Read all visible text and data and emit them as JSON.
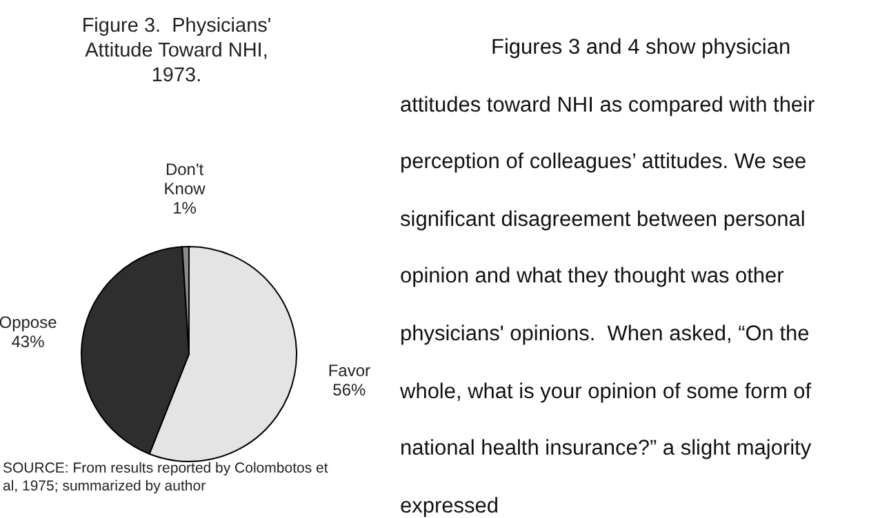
{
  "chart_data": {
    "type": "pie",
    "title": "Figure 3.  Physicians' Attitude Toward NHI, 1973.",
    "categories": [
      "Favor",
      "Oppose",
      "Don't Know"
    ],
    "values": [
      56,
      43,
      1
    ],
    "value_labels": [
      "56%",
      "43%",
      "1%"
    ],
    "colors": [
      "#e4e4e4",
      "#2e2e2e",
      "#8a8a8a"
    ],
    "annotations": [
      "SOURCE: From results reported by Colombotos et al, 1975; summarized by author",
      "Figures 3 and 4 show physician attitudes toward NHI as compared with their perception of colleagues’ attitudes. We see significant disagreement between personal opinion and what they thought was other physicians' opinions.  When asked, “On the whole, what is your opinion of some form of national health insurance?” a slight majority expressed"
    ]
  }
}
